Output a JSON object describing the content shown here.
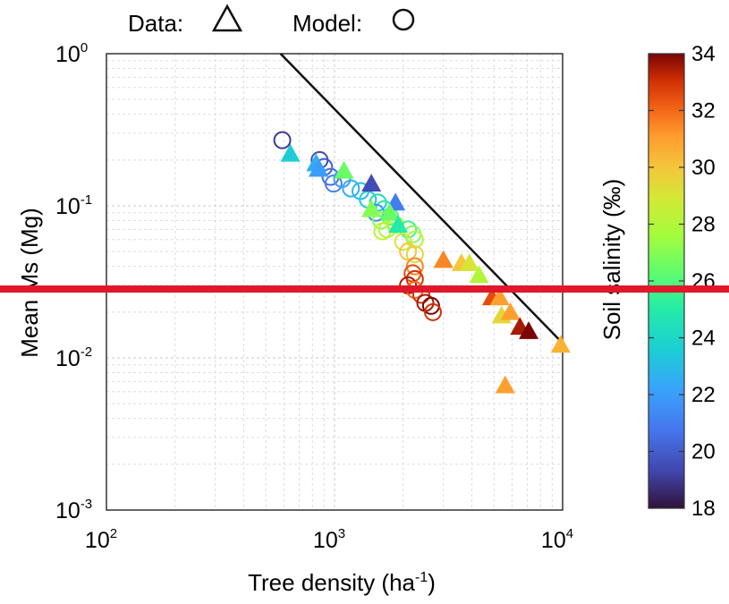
{
  "legend": {
    "data_label": "Data:",
    "model_label": "Model:",
    "data_icon": "triangle-icon",
    "model_icon": "circle-icon"
  },
  "overlay": {
    "horizontal_line_color": "#e0182a"
  },
  "chart_data": {
    "type": "scatter",
    "xscale": "log",
    "yscale": "log",
    "xlim": [
      100,
      10000
    ],
    "ylim": [
      0.001,
      1
    ],
    "xlabel_base": "Tree density (ha",
    "xlabel_exp": "-1",
    "xlabel_close": ")",
    "ylabel": "Mean Ms (Mg)",
    "grid": true,
    "xticks": [
      {
        "base": "10",
        "exp": "2",
        "value": 100
      },
      {
        "base": "10",
        "exp": "3",
        "value": 1000
      },
      {
        "base": "10",
        "exp": "4",
        "value": 10000
      }
    ],
    "yticks": [
      {
        "base": "10",
        "exp": "0",
        "value": 1
      },
      {
        "base": "10",
        "exp": "-1",
        "value": 0.1
      },
      {
        "base": "10",
        "exp": "-2",
        "value": 0.01
      },
      {
        "base": "10",
        "exp": "-3",
        "value": 0.001
      }
    ],
    "colorbar": {
      "label": "Soil salinity (‰)",
      "min": 18,
      "max": 34,
      "ticks": [
        "18",
        "20",
        "22",
        "24",
        "26",
        "28",
        "30",
        "32",
        "34"
      ],
      "colormap": "turbo"
    },
    "line": {
      "color": "#111111",
      "x": [
        580,
        10000
      ],
      "y": [
        1.0,
        0.0125
      ]
    },
    "series": [
      {
        "marker": "triangle-filled",
        "points": [
          {
            "x": 640,
            "y": 0.22,
            "s": 23.5
          },
          {
            "x": 830,
            "y": 0.19,
            "s": 22.5
          },
          {
            "x": 850,
            "y": 0.175,
            "s": 22.0
          },
          {
            "x": 1100,
            "y": 0.17,
            "s": 26.5
          },
          {
            "x": 1450,
            "y": 0.14,
            "s": 19.5
          },
          {
            "x": 1850,
            "y": 0.105,
            "s": 21.0
          },
          {
            "x": 1450,
            "y": 0.095,
            "s": 27.0
          },
          {
            "x": 1750,
            "y": 0.09,
            "s": 26.5
          },
          {
            "x": 1900,
            "y": 0.075,
            "s": 25.0
          },
          {
            "x": 3000,
            "y": 0.044,
            "s": 31.5
          },
          {
            "x": 3600,
            "y": 0.042,
            "s": 30.0
          },
          {
            "x": 3900,
            "y": 0.042,
            "s": 29.0
          },
          {
            "x": 4300,
            "y": 0.035,
            "s": 28.0
          },
          {
            "x": 4900,
            "y": 0.025,
            "s": 32.5
          },
          {
            "x": 5300,
            "y": 0.025,
            "s": 31.0
          },
          {
            "x": 5400,
            "y": 0.019,
            "s": 29.5
          },
          {
            "x": 5900,
            "y": 0.02,
            "s": 31.0
          },
          {
            "x": 6500,
            "y": 0.016,
            "s": 33.5
          },
          {
            "x": 7100,
            "y": 0.015,
            "s": 34.0
          },
          {
            "x": 5600,
            "y": 0.0066,
            "s": 31.0
          },
          {
            "x": 9800,
            "y": 0.0122,
            "s": 30.5
          }
        ]
      },
      {
        "marker": "circle-open",
        "points": [
          {
            "x": 590,
            "y": 0.27,
            "s": 19.0
          },
          {
            "x": 860,
            "y": 0.2,
            "s": 19.5
          },
          {
            "x": 900,
            "y": 0.18,
            "s": 20.0
          },
          {
            "x": 960,
            "y": 0.155,
            "s": 20.5
          },
          {
            "x": 990,
            "y": 0.14,
            "s": 21.0
          },
          {
            "x": 1080,
            "y": 0.15,
            "s": 22.0
          },
          {
            "x": 1180,
            "y": 0.13,
            "s": 22.5
          },
          {
            "x": 1300,
            "y": 0.125,
            "s": 23.0
          },
          {
            "x": 1400,
            "y": 0.11,
            "s": 23.5
          },
          {
            "x": 1550,
            "y": 0.105,
            "s": 24.0
          },
          {
            "x": 1650,
            "y": 0.095,
            "s": 25.0
          },
          {
            "x": 1520,
            "y": 0.09,
            "s": 21.5
          },
          {
            "x": 1750,
            "y": 0.085,
            "s": 26.0
          },
          {
            "x": 1600,
            "y": 0.08,
            "s": 27.0
          },
          {
            "x": 1850,
            "y": 0.075,
            "s": 27.5
          },
          {
            "x": 1700,
            "y": 0.07,
            "s": 28.0
          },
          {
            "x": 2100,
            "y": 0.07,
            "s": 25.5
          },
          {
            "x": 1620,
            "y": 0.068,
            "s": 28.5
          },
          {
            "x": 2200,
            "y": 0.065,
            "s": 27.0
          },
          {
            "x": 2250,
            "y": 0.06,
            "s": 28.0
          },
          {
            "x": 2000,
            "y": 0.058,
            "s": 29.0
          },
          {
            "x": 2100,
            "y": 0.05,
            "s": 30.0
          },
          {
            "x": 2250,
            "y": 0.048,
            "s": 29.5
          },
          {
            "x": 2250,
            "y": 0.04,
            "s": 31.5
          },
          {
            "x": 2200,
            "y": 0.036,
            "s": 32.5
          },
          {
            "x": 2250,
            "y": 0.033,
            "s": 33.0
          },
          {
            "x": 2100,
            "y": 0.03,
            "s": 33.5
          },
          {
            "x": 2250,
            "y": 0.028,
            "s": 32.0
          },
          {
            "x": 2400,
            "y": 0.026,
            "s": 33.0
          },
          {
            "x": 2500,
            "y": 0.023,
            "s": 33.5
          },
          {
            "x": 2650,
            "y": 0.022,
            "s": 34.0
          },
          {
            "x": 2700,
            "y": 0.02,
            "s": 33.0
          }
        ]
      }
    ]
  }
}
